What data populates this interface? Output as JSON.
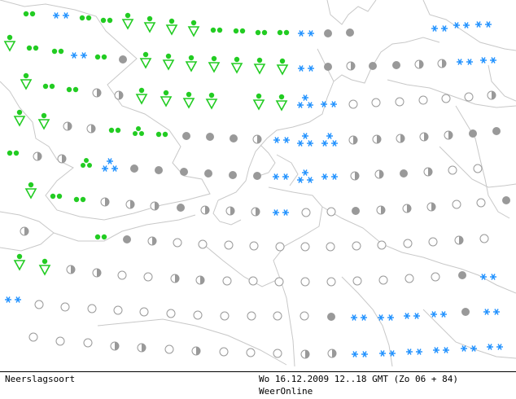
{
  "footer": {
    "product": "Neerslagsoort",
    "valid_time": "Wo 16.12.2009 12..18 GMT (Zo 06 + 84)",
    "source": "WeerOnline"
  },
  "legend_colors": {
    "rain_showers": "#22cc22",
    "snow": "#1e90ff",
    "no_precip": "#999999",
    "coastline": "#c8c8c8"
  },
  "grid": {
    "columns": 21,
    "rows": 14,
    "symbols": [
      "RRSSRRnUUUrrrrrssnnnn|sss",
      ""
    ]
  },
  "stations": [
    [
      "rain",
      36,
      17
    ],
    [
      "snow",
      75,
      19
    ],
    [
      "rain",
      105,
      22
    ],
    [
      "rain",
      131,
      25
    ],
    [
      "shower",
      157,
      27
    ],
    [
      "shower",
      184,
      31
    ],
    [
      "shower",
      211,
      34
    ],
    [
      "shower",
      238,
      36
    ],
    [
      "rain",
      266,
      37
    ],
    [
      "rain",
      294,
      38
    ],
    [
      "rain",
      321,
      40
    ],
    [
      "rain",
      348,
      40
    ],
    [
      "snow",
      376,
      41
    ],
    [
      "full",
      403,
      41
    ],
    [
      "full",
      430,
      40
    ],
    [
      "snow",
      540,
      35
    ],
    [
      "snow",
      567,
      31
    ],
    [
      "snow",
      594,
      30
    ],
    [
      "shower",
      12,
      54
    ],
    [
      "rain",
      40,
      59
    ],
    [
      "rain",
      71,
      63
    ],
    [
      "snow",
      97,
      68
    ],
    [
      "rain",
      124,
      70
    ],
    [
      "full",
      151,
      73
    ],
    [
      "shower",
      179,
      75
    ],
    [
      "shower",
      207,
      77
    ],
    [
      "shower",
      235,
      79
    ],
    [
      "shower",
      263,
      80
    ],
    [
      "shower",
      291,
      81
    ],
    [
      "shower",
      319,
      82
    ],
    [
      "shower",
      347,
      83
    ],
    [
      "snow",
      376,
      84
    ],
    [
      "full",
      403,
      82
    ],
    [
      "half",
      431,
      81
    ],
    [
      "full",
      458,
      81
    ],
    [
      "full",
      487,
      80
    ],
    [
      "half",
      515,
      79
    ],
    [
      "half",
      543,
      78
    ],
    [
      "snow",
      571,
      76
    ],
    [
      "snow",
      600,
      74
    ],
    [
      "shower",
      32,
      101
    ],
    [
      "rain",
      60,
      106
    ],
    [
      "rain",
      89,
      110
    ],
    [
      "half",
      119,
      114
    ],
    [
      "half",
      146,
      117
    ],
    [
      "shower",
      174,
      119
    ],
    [
      "shower",
      204,
      122
    ],
    [
      "shower",
      232,
      124
    ],
    [
      "shower",
      260,
      125
    ],
    [
      "shower",
      318,
      126
    ],
    [
      "shower",
      346,
      127
    ],
    [
      "snowmix",
      375,
      126
    ],
    [
      "snow",
      404,
      128
    ],
    [
      "empty",
      434,
      128
    ],
    [
      "empty",
      462,
      126
    ],
    [
      "empty",
      491,
      125
    ],
    [
      "empty",
      520,
      123
    ],
    [
      "empty",
      548,
      121
    ],
    [
      "empty",
      576,
      119
    ],
    [
      "half",
      604,
      117
    ],
    [
      "shower",
      24,
      146
    ],
    [
      "shower",
      54,
      150
    ],
    [
      "half",
      83,
      155
    ],
    [
      "half",
      112,
      158
    ],
    [
      "rain",
      141,
      160
    ],
    [
      "rain3",
      170,
      162
    ],
    [
      "rain",
      199,
      165
    ],
    [
      "full",
      229,
      167
    ],
    [
      "full",
      258,
      168
    ],
    [
      "full",
      287,
      170
    ],
    [
      "half",
      316,
      171
    ],
    [
      "snow",
      346,
      172
    ],
    [
      "snowmix",
      375,
      173
    ],
    [
      "snowmix",
      405,
      173
    ],
    [
      "half",
      434,
      172
    ],
    [
      "half",
      463,
      171
    ],
    [
      "half",
      492,
      170
    ],
    [
      "half",
      521,
      168
    ],
    [
      "half",
      551,
      166
    ],
    [
      "full",
      581,
      164
    ],
    [
      "full",
      610,
      161
    ],
    [
      "rain",
      16,
      188
    ],
    [
      "half",
      46,
      192
    ],
    [
      "half",
      76,
      195
    ],
    [
      "rain3",
      106,
      201
    ],
    [
      "snowmix",
      135,
      204
    ],
    [
      "full",
      165,
      207
    ],
    [
      "full",
      195,
      209
    ],
    [
      "full",
      226,
      211
    ],
    [
      "full",
      256,
      213
    ],
    [
      "full",
      286,
      215
    ],
    [
      "full",
      316,
      216
    ],
    [
      "snow",
      345,
      217
    ],
    [
      "snowmix",
      375,
      218
    ],
    [
      "snow",
      405,
      217
    ],
    [
      "half",
      436,
      216
    ],
    [
      "half",
      466,
      214
    ],
    [
      "full",
      496,
      213
    ],
    [
      "half",
      526,
      211
    ],
    [
      "empty",
      556,
      209
    ],
    [
      "empty",
      587,
      207
    ],
    [
      "shower",
      38,
      235
    ],
    [
      "rain",
      69,
      241
    ],
    [
      "rain",
      98,
      245
    ],
    [
      "half",
      129,
      248
    ],
    [
      "half",
      160,
      251
    ],
    [
      "half",
      190,
      253
    ],
    [
      "full",
      222,
      255
    ],
    [
      "half",
      252,
      258
    ],
    [
      "half",
      283,
      259
    ],
    [
      "half",
      314,
      260
    ],
    [
      "snow",
      345,
      261
    ],
    [
      "empty",
      376,
      261
    ],
    [
      "empty",
      407,
      260
    ],
    [
      "full",
      437,
      259
    ],
    [
      "half",
      468,
      258
    ],
    [
      "half",
      500,
      256
    ],
    [
      "half",
      530,
      254
    ],
    [
      "empty",
      561,
      251
    ],
    [
      "empty",
      591,
      249
    ],
    [
      "full",
      622,
      246
    ],
    [
      "half",
      30,
      284
    ],
    [
      "rain",
      124,
      291
    ],
    [
      "full",
      156,
      294
    ],
    [
      "half",
      187,
      296
    ],
    [
      "empty",
      218,
      298
    ],
    [
      "empty",
      249,
      300
    ],
    [
      "empty",
      281,
      301
    ],
    [
      "empty",
      312,
      302
    ],
    [
      "empty",
      344,
      303
    ],
    [
      "empty",
      375,
      303
    ],
    [
      "empty",
      406,
      303
    ],
    [
      "empty",
      438,
      302
    ],
    [
      "empty",
      469,
      301
    ],
    [
      "empty",
      501,
      299
    ],
    [
      "empty",
      532,
      297
    ],
    [
      "half",
      564,
      295
    ],
    [
      "empty",
      595,
      293
    ],
    [
      "shower",
      24,
      323
    ],
    [
      "shower",
      55,
      329
    ],
    [
      "half",
      87,
      331
    ],
    [
      "half",
      119,
      335
    ],
    [
      "empty",
      150,
      338
    ],
    [
      "empty",
      182,
      340
    ],
    [
      "half",
      215,
      342
    ],
    [
      "half",
      246,
      344
    ],
    [
      "empty",
      279,
      345
    ],
    [
      "empty",
      311,
      345
    ],
    [
      "empty",
      343,
      346
    ],
    [
      "empty",
      375,
      346
    ],
    [
      "empty",
      407,
      346
    ],
    [
      "empty",
      439,
      345
    ],
    [
      "empty",
      471,
      344
    ],
    [
      "empty",
      503,
      342
    ],
    [
      "empty",
      535,
      340
    ],
    [
      "full",
      568,
      338
    ],
    [
      "snow",
      600,
      340
    ],
    [
      "snow",
      16,
      368
    ],
    [
      "empty",
      48,
      374
    ],
    [
      "empty",
      80,
      377
    ],
    [
      "empty",
      113,
      379
    ],
    [
      "empty",
      145,
      381
    ],
    [
      "empty",
      177,
      383
    ],
    [
      "empty",
      210,
      385
    ],
    [
      "empty",
      243,
      387
    ],
    [
      "empty",
      276,
      388
    ],
    [
      "empty",
      309,
      388
    ],
    [
      "empty",
      341,
      388
    ],
    [
      "empty",
      374,
      388
    ],
    [
      "full",
      407,
      389
    ],
    [
      "snow",
      441,
      390
    ],
    [
      "snow",
      474,
      390
    ],
    [
      "snow",
      506,
      388
    ],
    [
      "snow",
      539,
      386
    ],
    [
      "full",
      572,
      383
    ],
    [
      "snow",
      604,
      383
    ],
    [
      "empty",
      41,
      414
    ],
    [
      "empty",
      74,
      419
    ],
    [
      "empty",
      108,
      421
    ],
    [
      "half",
      141,
      425
    ],
    [
      "half",
      174,
      427
    ],
    [
      "empty",
      208,
      429
    ],
    [
      "half",
      241,
      431
    ],
    [
      "empty",
      275,
      432
    ],
    [
      "empty",
      308,
      433
    ],
    [
      "empty",
      341,
      434
    ],
    [
      "half",
      375,
      435
    ],
    [
      "half",
      408,
      434
    ],
    [
      "snow",
      442,
      435
    ],
    [
      "snow",
      476,
      434
    ],
    [
      "snow",
      509,
      432
    ],
    [
      "snow",
      542,
      430
    ],
    [
      "snow",
      576,
      428
    ],
    [
      "snow",
      608,
      426
    ]
  ]
}
